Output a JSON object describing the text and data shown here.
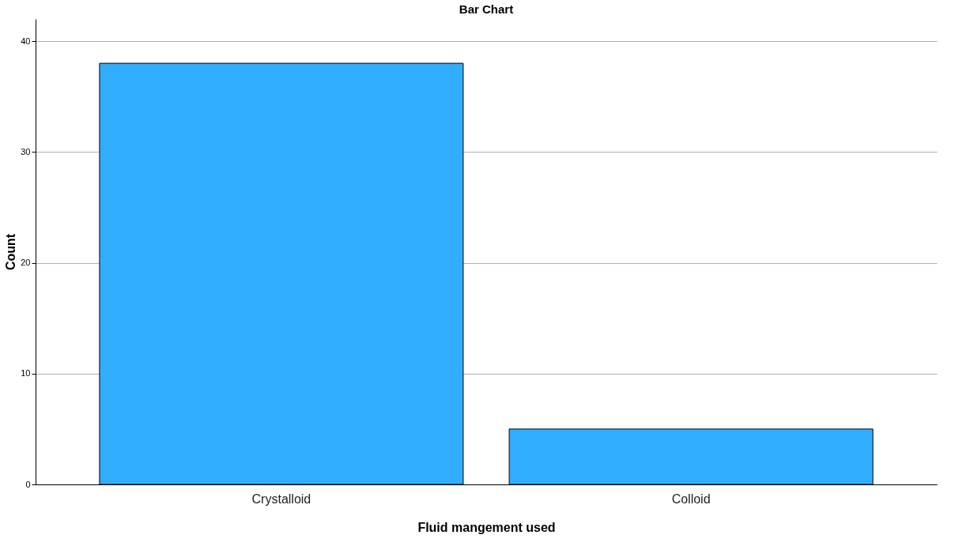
{
  "chart_data": {
    "type": "bar",
    "title": "Bar Chart",
    "xlabel": "Fluid mangement used",
    "ylabel": "Count",
    "categories": [
      "Crystalloid",
      "Colloid"
    ],
    "values": [
      38,
      5
    ],
    "color": "#30adff",
    "ylim": [
      0,
      42
    ],
    "yticks": [
      0,
      10,
      20,
      30,
      40
    ],
    "grid": "y"
  }
}
